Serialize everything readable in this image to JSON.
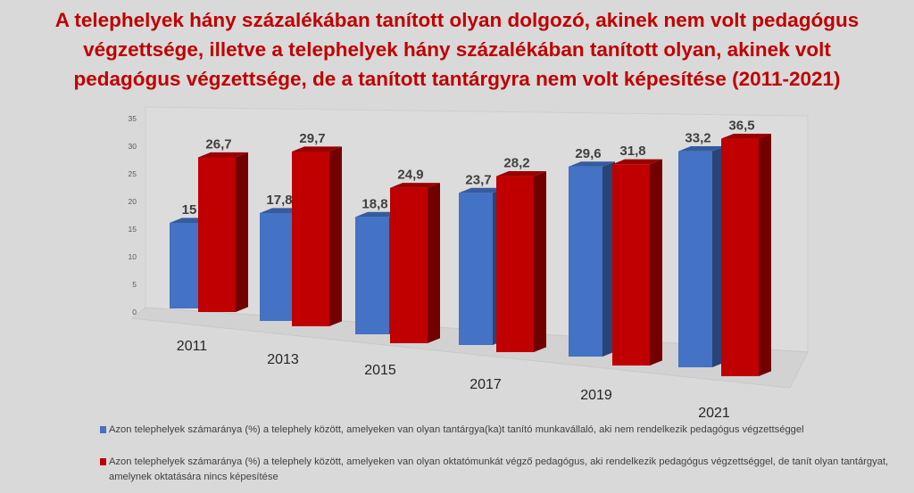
{
  "chart_data": {
    "type": "bar",
    "title_lines": [
      "A telephelyek hány százalékában tanított olyan dolgozó, akinek nem volt pedagógus",
      "végzettsége, illetve a telephelyek hány százalékában tanított olyan, akinek volt",
      "pedagógus végzettsége, de a tanított tantárgyra nem volt képesítése (2011-2021)"
    ],
    "categories": [
      "2011",
      "2013",
      "2015",
      "2017",
      "2019",
      "2021"
    ],
    "series": [
      {
        "name": "Azon telephelyek számaránya (%) a telephely között, amelyeken van olyan tantárgya(ka)t tanító munkavállaló, aki nem rendelkezik pedagógus végzettséggel",
        "values": [
          15,
          17.8,
          18.8,
          23.7,
          29.6,
          33.2
        ],
        "labels": [
          "15",
          "17,8",
          "18,8",
          "23,7",
          "29,6",
          "33,2"
        ],
        "color": "#4472c4"
      },
      {
        "name": "Azon telephelyek számaránya (%) a telephely között, amelyeken van olyan oktatómunkát végző pedagógus, aki rendelkezik pedagógus végzettséggel, de tanít olyan tantárgyat, amelynek oktatására nincs képesítése",
        "values": [
          26.7,
          29.7,
          24.9,
          28.2,
          31.8,
          36.5
        ],
        "labels": [
          "26,7",
          "29,7",
          "24,9",
          "28,2",
          "31,8",
          "36,5"
        ],
        "color": "#c00000"
      }
    ],
    "ylim": [
      0,
      35
    ],
    "yticks": [
      "0",
      "5",
      "10",
      "15",
      "20",
      "25",
      "30",
      "35"
    ],
    "grid": false,
    "legend_position": "bottom"
  }
}
